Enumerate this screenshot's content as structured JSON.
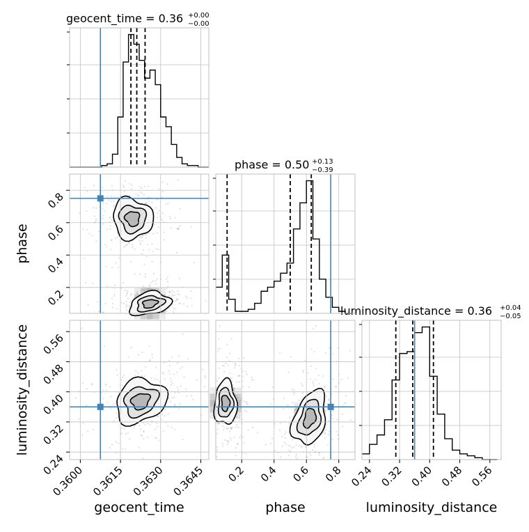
{
  "colors": {
    "truth": "#4682b4",
    "hist": "#000000",
    "quantile": "#000000",
    "grid": "#bfbfbf",
    "scatter": "#7f7f7f"
  },
  "chart_data": {
    "type": "corner",
    "parameters": [
      "geocent_time",
      "phase",
      "luminosity_distance"
    ],
    "truths": {
      "geocent_time": 0.36075,
      "phase": 0.75,
      "luminosity_distance": 0.36
    },
    "axes": {
      "geocent_time": {
        "range": [
          0.3596,
          0.3648
        ],
        "ticks": [
          0.36,
          0.3615,
          0.363,
          0.3645
        ],
        "tick_labels": [
          "0.3600",
          "0.3615",
          "0.3630",
          "0.3645"
        ],
        "xlabel": "geocent_time"
      },
      "phase": {
        "range": [
          0.04,
          0.9
        ],
        "ticks": [
          0.2,
          0.4,
          0.6,
          0.8
        ],
        "tick_labels": [
          "0.2",
          "0.4",
          "0.6",
          "0.8"
        ],
        "xlabel": "phase",
        "ylabel": "phase"
      },
      "luminosity_distance": {
        "range": [
          0.22,
          0.59
        ],
        "ticks": [
          0.24,
          0.32,
          0.4,
          0.48,
          0.56
        ],
        "tick_labels": [
          "0.24",
          "0.32",
          "0.40",
          "0.48",
          "0.56"
        ],
        "xlabel": "luminosity_distance",
        "ylabel": "luminosity_distance"
      }
    },
    "diagonals": [
      {
        "parameter": "geocent_time",
        "title_main": "geocent_time = 0.36",
        "title_sup": "+0.00",
        "title_sub": "−0.00",
        "quantiles": [
          0.36189,
          0.36211,
          0.36242
        ],
        "bin_edges": [
          0.3596,
          0.3598,
          0.36,
          0.3602,
          0.3604,
          0.3606,
          0.3608,
          0.361,
          0.3612,
          0.3614,
          0.3616,
          0.3618,
          0.362,
          0.3622,
          0.3624,
          0.3626,
          0.3628,
          0.363,
          0.3632,
          0.3634,
          0.3636,
          0.3638,
          0.364,
          0.3642,
          0.3644,
          0.3646,
          0.3648
        ],
        "counts": [
          0,
          0,
          0,
          0,
          0,
          0,
          1,
          2,
          8,
          31,
          65,
          82,
          76,
          66,
          55,
          60,
          51,
          31,
          25,
          14,
          6,
          2,
          1,
          1,
          0,
          0
        ]
      },
      {
        "parameter": "phase",
        "title_main": "phase = 0.50",
        "title_sup": "+0.13",
        "title_sub": "−0.39",
        "quantiles": [
          0.11,
          0.5,
          0.63
        ],
        "bin_edges": [
          0.04,
          0.08,
          0.12,
          0.16,
          0.2,
          0.24,
          0.28,
          0.32,
          0.36,
          0.4,
          0.44,
          0.48,
          0.52,
          0.56,
          0.6,
          0.64,
          0.68,
          0.72,
          0.76,
          0.8,
          0.84,
          0.88
        ],
        "counts": [
          13,
          29,
          7,
          1,
          1,
          2,
          5,
          11,
          13,
          16,
          20,
          25,
          42,
          55,
          66,
          37,
          17,
          8,
          3,
          1,
          0
        ]
      },
      {
        "parameter": "luminosity_distance",
        "title_main": "luminosity_distance = 0.36",
        "title_sup": "+0.04",
        "title_sub": "−0.05",
        "quantiles": [
          0.31,
          0.355,
          0.41
        ],
        "bin_edges": [
          0.22,
          0.24,
          0.26,
          0.28,
          0.3,
          0.32,
          0.34,
          0.36,
          0.38,
          0.4,
          0.42,
          0.44,
          0.46,
          0.48,
          0.5,
          0.52,
          0.54,
          0.56,
          0.58
        ],
        "counts": [
          3,
          8,
          13,
          21,
          42,
          56,
          57,
          67,
          70,
          44,
          24,
          11,
          5,
          3,
          2,
          1,
          0,
          0
        ]
      }
    ],
    "pairs": [
      {
        "x": "geocent_time",
        "y": "phase",
        "modes": [
          {
            "x": 0.36195,
            "y": 0.625
          },
          {
            "x": 0.3626,
            "y": 0.1
          }
        ]
      },
      {
        "x": "geocent_time",
        "y": "luminosity_distance",
        "modes": [
          {
            "x": 0.36225,
            "y": 0.375
          }
        ]
      },
      {
        "x": "phase",
        "y": "luminosity_distance",
        "modes": [
          {
            "x": 0.1,
            "y": 0.37
          },
          {
            "x": 0.62,
            "y": 0.33
          }
        ]
      }
    ]
  }
}
